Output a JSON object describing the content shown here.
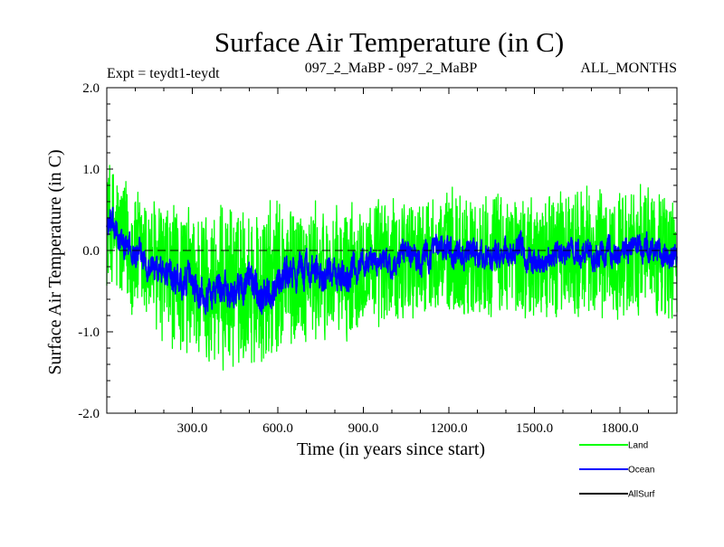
{
  "chart_data": {
    "type": "line",
    "title": "Surface Air Temperature (in C)",
    "subtitle_left": "Expt = teydt1-teydt",
    "subtitle_center": "097_2_MaBP - 097_2_MaBP",
    "subtitle_right": "ALL_MONTHS",
    "xlabel": "Time (in years since start)",
    "ylabel": "Surface Air Temperature (in C)",
    "xlim": [
      0,
      2000
    ],
    "ylim": [
      -2.0,
      2.0
    ],
    "x_ticks": [
      300,
      600,
      900,
      1200,
      1500,
      1800
    ],
    "x_tick_labels": [
      "300.0",
      "600.0",
      "900.0",
      "1200.0",
      "1500.0",
      "1800.0"
    ],
    "y_ticks": [
      -2.0,
      -1.0,
      0.0,
      1.0,
      2.0
    ],
    "y_tick_labels": [
      "-2.0",
      "-1.0",
      "0.0",
      "1.0",
      "2.0"
    ],
    "zero_line": true,
    "legend_position": "bottom-right",
    "series": [
      {
        "name": "Land",
        "color": "#00ff00",
        "x": [
          0,
          50,
          100,
          150,
          200,
          250,
          300,
          350,
          400,
          450,
          500,
          550,
          600,
          650,
          700,
          750,
          800,
          850,
          900,
          950,
          1000,
          1050,
          1100,
          1150,
          1200,
          1250,
          1300,
          1350,
          1400,
          1450,
          1500,
          1550,
          1600,
          1650,
          1700,
          1750,
          1800,
          1850,
          1900,
          1950,
          2000
        ],
        "center": [
          0.35,
          0.1,
          -0.05,
          -0.15,
          -0.3,
          -0.35,
          -0.4,
          -0.45,
          -0.5,
          -0.45,
          -0.4,
          -0.5,
          -0.35,
          -0.3,
          -0.25,
          -0.3,
          -0.35,
          -0.3,
          -0.1,
          -0.15,
          -0.2,
          -0.05,
          -0.1,
          -0.05,
          -0.05,
          -0.05,
          -0.1,
          -0.05,
          -0.05,
          -0.05,
          -0.15,
          -0.05,
          -0.05,
          0.0,
          -0.05,
          -0.05,
          -0.05,
          0.0,
          0.0,
          -0.05,
          -0.1
        ],
        "spread": [
          0.9,
          1.0,
          0.95,
          1.0,
          1.05,
          1.05,
          1.1,
          1.15,
          1.2,
          1.15,
          1.1,
          1.2,
          1.15,
          1.05,
          1.0,
          1.0,
          1.0,
          1.0,
          0.95,
          0.95,
          0.95,
          0.9,
          0.9,
          0.9,
          0.95,
          0.95,
          0.9,
          0.9,
          0.9,
          0.9,
          0.9,
          0.9,
          0.95,
          0.95,
          0.95,
          0.95,
          0.95,
          0.95,
          0.9,
          0.95,
          0.9
        ]
      },
      {
        "name": "Ocean",
        "color": "#0000ff",
        "x": [
          0,
          50,
          100,
          150,
          200,
          250,
          300,
          350,
          400,
          450,
          500,
          550,
          600,
          650,
          700,
          750,
          800,
          850,
          900,
          950,
          1000,
          1050,
          1100,
          1150,
          1200,
          1250,
          1300,
          1350,
          1400,
          1450,
          1500,
          1550,
          1600,
          1650,
          1700,
          1750,
          1800,
          1850,
          1900,
          1950,
          2000
        ],
        "center": [
          0.35,
          0.1,
          -0.05,
          -0.15,
          -0.3,
          -0.35,
          -0.4,
          -0.45,
          -0.5,
          -0.45,
          -0.4,
          -0.5,
          -0.35,
          -0.3,
          -0.25,
          -0.3,
          -0.35,
          -0.3,
          -0.1,
          -0.15,
          -0.2,
          -0.05,
          -0.1,
          -0.05,
          -0.05,
          -0.05,
          -0.1,
          -0.05,
          -0.05,
          -0.05,
          -0.15,
          -0.05,
          -0.05,
          0.0,
          -0.05,
          -0.05,
          -0.05,
          0.0,
          0.0,
          -0.05,
          -0.1
        ],
        "spread": [
          0.3,
          0.25,
          0.25,
          0.25,
          0.3,
          0.3,
          0.3,
          0.3,
          0.35,
          0.3,
          0.3,
          0.35,
          0.3,
          0.3,
          0.3,
          0.3,
          0.3,
          0.3,
          0.25,
          0.25,
          0.25,
          0.25,
          0.25,
          0.25,
          0.25,
          0.25,
          0.25,
          0.25,
          0.25,
          0.25,
          0.25,
          0.25,
          0.25,
          0.25,
          0.25,
          0.25,
          0.25,
          0.25,
          0.25,
          0.25,
          0.25
        ]
      },
      {
        "name": "AllSurf",
        "color": "#000000",
        "x": [],
        "center": [],
        "spread": []
      }
    ]
  }
}
